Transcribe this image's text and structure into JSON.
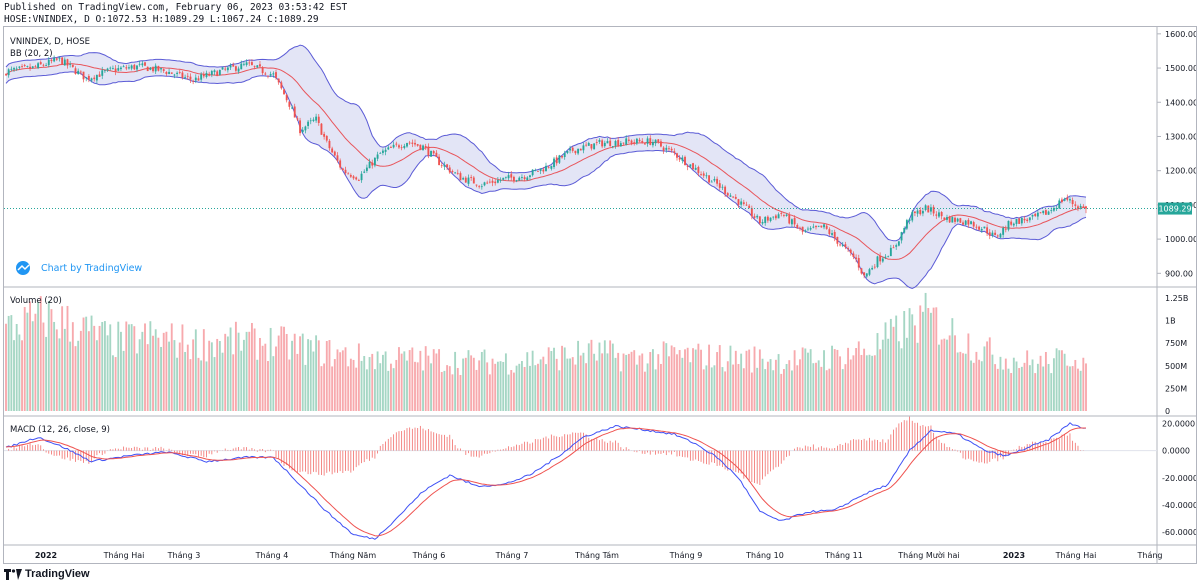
{
  "header": {
    "published": "Published on TradingView.com, February 06, 2023 03:53:42 EST",
    "ohlc": "HOSE:VNINDEX, D O:1072.53 H:1089.29 L:1067.24 C:1089.29"
  },
  "legend": {
    "symbol": "VNINDEX, D, HOSE",
    "bb": "BB (20, 2)",
    "volume": "Volume (20)",
    "macd": "MACD (12, 26, close, 9)",
    "watermark": "Chart by TradingView"
  },
  "footer": {
    "brand": "TradingView"
  },
  "colors": {
    "up": "#26a69a",
    "down": "#ef5350",
    "bb_band": "#5b5bd6",
    "bb_mid": "#e8555b",
    "bb_fill": "#d1d4f0",
    "vol_up": "#a5d6c4",
    "vol_down": "#f7a9ad",
    "macd_line": "#3f51f5",
    "signal_line": "#ef5350",
    "last_price": "#26a69a"
  },
  "chart_data": [
    {
      "type": "line",
      "name": "price",
      "y_ticks": [
        "1600.00",
        "1500.00",
        "1400.00",
        "1300.00",
        "1200.00",
        "1100.00",
        "1000.00",
        "900.00"
      ],
      "ylim": [
        860,
        1620
      ],
      "last_price_label": "1089.29",
      "last_price": 1089.29,
      "x_labels": [
        "2022",
        "Tháng Hai",
        "Tháng 3",
        "Tháng 4",
        "Tháng Năm",
        "Tháng 6",
        "Tháng 7",
        "Tháng Tám",
        "Tháng 9",
        "Tháng 10",
        "Tháng 11",
        "Tháng Mười hai",
        "2023",
        "Tháng Hai",
        "Tháng"
      ],
      "close_anchors": [
        [
          0,
          1490
        ],
        [
          10,
          1500
        ],
        [
          20,
          1525
        ],
        [
          30,
          1470
        ],
        [
          40,
          1495
        ],
        [
          50,
          1505
        ],
        [
          60,
          1490
        ],
        [
          70,
          1465
        ],
        [
          80,
          1490
        ],
        [
          90,
          1510
        ],
        [
          100,
          1480
        ],
        [
          106,
          1395
        ],
        [
          110,
          1320
        ],
        [
          116,
          1350
        ],
        [
          120,
          1280
        ],
        [
          126,
          1200
        ],
        [
          132,
          1180
        ],
        [
          140,
          1250
        ],
        [
          150,
          1285
        ],
        [
          156,
          1270
        ],
        [
          162,
          1225
        ],
        [
          170,
          1180
        ],
        [
          178,
          1160
        ],
        [
          186,
          1175
        ],
        [
          194,
          1185
        ],
        [
          202,
          1210
        ],
        [
          212,
          1260
        ],
        [
          222,
          1280
        ],
        [
          232,
          1285
        ],
        [
          242,
          1285
        ],
        [
          250,
          1250
        ],
        [
          258,
          1205
        ],
        [
          266,
          1160
        ],
        [
          274,
          1110
        ],
        [
          282,
          1050
        ],
        [
          290,
          1075
        ],
        [
          298,
          1020
        ],
        [
          306,
          1035
        ],
        [
          314,
          970
        ],
        [
          318,
          940
        ],
        [
          321,
          890
        ],
        [
          326,
          940
        ],
        [
          332,
          970
        ],
        [
          338,
          1065
        ],
        [
          344,
          1090
        ],
        [
          352,
          1060
        ],
        [
          360,
          1050
        ],
        [
          366,
          1030
        ],
        [
          370,
          1005
        ],
        [
          376,
          1050
        ],
        [
          384,
          1060
        ],
        [
          390,
          1080
        ],
        [
          396,
          1120
        ],
        [
          400,
          1100
        ],
        [
          404,
          1089
        ]
      ],
      "n_bars": 405
    },
    {
      "type": "bar",
      "name": "volume",
      "y_ticks": [
        "1.25B",
        "1B",
        "750M",
        "500M",
        "250M",
        "0"
      ],
      "ylim": [
        0,
        1350000000
      ],
      "volume_anchors_millions": [
        [
          0,
          900
        ],
        [
          15,
          1050
        ],
        [
          25,
          950
        ],
        [
          40,
          780
        ],
        [
          55,
          820
        ],
        [
          70,
          750
        ],
        [
          85,
          780
        ],
        [
          100,
          760
        ],
        [
          115,
          680
        ],
        [
          130,
          600
        ],
        [
          145,
          580
        ],
        [
          160,
          580
        ],
        [
          175,
          540
        ],
        [
          190,
          560
        ],
        [
          205,
          600
        ],
        [
          220,
          650
        ],
        [
          235,
          580
        ],
        [
          250,
          620
        ],
        [
          265,
          600
        ],
        [
          280,
          580
        ],
        [
          295,
          560
        ],
        [
          310,
          600
        ],
        [
          325,
          700
        ],
        [
          335,
          900
        ],
        [
          345,
          1050
        ],
        [
          352,
          900
        ],
        [
          360,
          760
        ],
        [
          370,
          620
        ],
        [
          378,
          560
        ],
        [
          386,
          530
        ],
        [
          394,
          560
        ],
        [
          400,
          640
        ],
        [
          404,
          520
        ]
      ]
    },
    {
      "type": "line",
      "name": "macd",
      "series": [
        {
          "name": "MACD"
        },
        {
          "name": "signal"
        },
        {
          "name": "histogram"
        }
      ],
      "y_ticks": [
        "20.0000",
        "0.0000",
        "-20.0000",
        "-40.0000",
        "-60.0000"
      ],
      "ylim": [
        -68,
        24
      ],
      "macd_anchors": [
        [
          0,
          2
        ],
        [
          12,
          10
        ],
        [
          22,
          2
        ],
        [
          32,
          -8
        ],
        [
          45,
          -4
        ],
        [
          60,
          -1
        ],
        [
          75,
          -8
        ],
        [
          90,
          -5
        ],
        [
          100,
          -5
        ],
        [
          110,
          -25
        ],
        [
          120,
          -45
        ],
        [
          130,
          -62
        ],
        [
          138,
          -65
        ],
        [
          146,
          -50
        ],
        [
          156,
          -30
        ],
        [
          166,
          -18
        ],
        [
          176,
          -26
        ],
        [
          186,
          -25
        ],
        [
          196,
          -18
        ],
        [
          206,
          -5
        ],
        [
          216,
          10
        ],
        [
          228,
          18
        ],
        [
          240,
          15
        ],
        [
          250,
          12
        ],
        [
          258,
          5
        ],
        [
          266,
          -5
        ],
        [
          274,
          -20
        ],
        [
          282,
          -45
        ],
        [
          290,
          -52
        ],
        [
          300,
          -45
        ],
        [
          310,
          -44
        ],
        [
          320,
          -33
        ],
        [
          330,
          -25
        ],
        [
          338,
          0
        ],
        [
          346,
          15
        ],
        [
          356,
          12
        ],
        [
          366,
          0
        ],
        [
          374,
          -4
        ],
        [
          382,
          2
        ],
        [
          390,
          8
        ],
        [
          398,
          20
        ],
        [
          404,
          16
        ]
      ]
    }
  ]
}
